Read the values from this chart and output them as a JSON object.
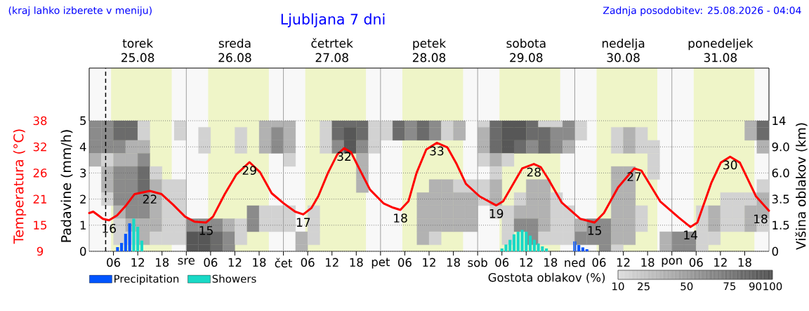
{
  "chart_data": [
    {
      "type": "bar",
      "title": "Ljubljana 7 dni",
      "annotations": [
        "(kraj lahko izberete v meniju)",
        "Zadnja posodobitev: 25.08.2026 - 04:04"
      ],
      "ylabel": "Padavine (mm/h)",
      "y2label": "Temperatura (°C)",
      "xlim": [
        "2026-08-25T00:00",
        "2026-09-01T00:00"
      ],
      "xticks": [
        {
          "value": "2026-08-25T06:00",
          "label": "06"
        },
        {
          "value": "2026-08-25T12:00",
          "label": "12"
        },
        {
          "value": "2026-08-25T18:00",
          "label": "18"
        },
        {
          "value": "2026-08-26T00:00",
          "label": "sre"
        },
        {
          "value": "2026-08-26T06:00",
          "label": "06"
        },
        {
          "value": "2026-08-26T12:00",
          "label": "12"
        },
        {
          "value": "2026-08-26T18:00",
          "label": "18"
        },
        {
          "value": "2026-08-27T00:00",
          "label": "čet"
        },
        {
          "value": "2026-08-27T06:00",
          "label": "06"
        },
        {
          "value": "2026-08-27T12:00",
          "label": "12"
        },
        {
          "value": "2026-08-27T18:00",
          "label": "18"
        },
        {
          "value": "2026-08-28T00:00",
          "label": "pet"
        },
        {
          "value": "2026-08-28T06:00",
          "label": "06"
        },
        {
          "value": "2026-08-28T12:00",
          "label": "12"
        },
        {
          "value": "2026-08-28T18:00",
          "label": "18"
        },
        {
          "value": "2026-08-29T00:00",
          "label": "sob"
        },
        {
          "value": "2026-08-29T06:00",
          "label": "06"
        },
        {
          "value": "2026-08-29T12:00",
          "label": "12"
        },
        {
          "value": "2026-08-29T18:00",
          "label": "18"
        },
        {
          "value": "2026-08-30T00:00",
          "label": "ned"
        },
        {
          "value": "2026-08-30T06:00",
          "label": "06"
        },
        {
          "value": "2026-08-30T12:00",
          "label": "12"
        },
        {
          "value": "2026-08-30T18:00",
          "label": "18"
        },
        {
          "value": "2026-08-31T00:00",
          "label": "pon"
        },
        {
          "value": "2026-08-31T06:00",
          "label": "06"
        },
        {
          "value": "2026-08-31T12:00",
          "label": "12"
        },
        {
          "value": "2026-08-31T18:00",
          "label": "18"
        }
      ],
      "x2lim": [
        "2026-08-25T00:00",
        "2026-09-01T00:00"
      ],
      "x2ticks": [
        {
          "value": "2026-08-25T12:00",
          "label": "torek\n25.08"
        },
        {
          "value": "2026-08-26T12:00",
          "label": "sreda\n26.08"
        },
        {
          "value": "2026-08-27T12:00",
          "label": "četrtek\n27.08"
        },
        {
          "value": "2026-08-28T12:00",
          "label": "petek\n28.08"
        },
        {
          "value": "2026-08-29T12:00",
          "label": "sobota\n29.08"
        },
        {
          "value": "2026-08-30T12:00",
          "label": "nedelja\n30.08"
        },
        {
          "value": "2026-08-31T12:00",
          "label": "ponedeljek\n31.08"
        }
      ],
      "ylim": [
        0,
        5
      ],
      "yticks": [
        0,
        1,
        2,
        3,
        4,
        5
      ],
      "y2lim": [
        9,
        38
      ],
      "y2ticks": [
        9,
        {
          "value": 14.8,
          "label": "15"
        },
        {
          "value": 20.6,
          "label": "21"
        },
        {
          "value": 26.4,
          "label": "26"
        },
        {
          "value": 32.2,
          "label": "32"
        },
        38
      ],
      "grid": "y",
      "legend": "bottom left",
      "bands": [
        {
          "axis": "x",
          "from": "2026-08-25T05:24",
          "to": "2026-08-25T20:24",
          "color": "#eff5c8"
        },
        {
          "axis": "x",
          "from": "2026-08-26T05:24",
          "to": "2026-08-26T20:24",
          "color": "#eff5c8"
        },
        {
          "axis": "x",
          "from": "2026-08-27T05:24",
          "to": "2026-08-27T20:24",
          "color": "#eff5c8"
        },
        {
          "axis": "x",
          "from": "2026-08-28T05:24",
          "to": "2026-08-28T20:24",
          "color": "#eff5c8"
        },
        {
          "axis": "x",
          "from": "2026-08-29T05:24",
          "to": "2026-08-29T20:24",
          "color": "#eff5c8"
        },
        {
          "axis": "x",
          "from": "2026-08-30T05:24",
          "to": "2026-08-30T20:24",
          "color": "#eff5c8"
        },
        {
          "axis": "x",
          "from": "2026-08-31T05:24",
          "to": "2026-08-31T20:24",
          "color": "#eff5c8"
        }
      ],
      "ref_lines": [
        {
          "axis": "x",
          "value": "2026-08-25T04:04",
          "line_style": "dashed",
          "color": "#000000"
        },
        {
          "axis": "x",
          "value": "2026-08-26T00:00",
          "color": "#a0a0a0"
        },
        {
          "axis": "x",
          "value": "2026-08-27T00:00",
          "color": "#a0a0a0"
        },
        {
          "axis": "x",
          "value": "2026-08-28T00:00",
          "color": "#a0a0a0"
        },
        {
          "axis": "x",
          "value": "2026-08-29T00:00",
          "color": "#a0a0a0"
        },
        {
          "axis": "x",
          "value": "2026-08-30T00:00",
          "color": "#a0a0a0"
        },
        {
          "axis": "x",
          "value": "2026-08-31T00:00",
          "color": "#a0a0a0"
        }
      ],
      "series": [
        {
          "name": "Precipitation",
          "color": "#0055ff",
          "x": [
            "2026-08-25T07:00",
            "2026-08-25T08:00",
            "2026-08-25T09:00",
            "2026-08-25T10:00",
            "2026-08-30T00:00",
            "2026-08-30T01:00",
            "2026-08-30T02:00",
            "2026-08-30T03:00"
          ],
          "values": [
            0.16,
            0.32,
            0.67,
            1.07,
            0.38,
            0.24,
            0.15,
            0.08
          ]
        },
        {
          "name": "Showers",
          "color": "#19d9c6",
          "x": [
            "2026-08-25T11:00",
            "2026-08-25T12:00",
            "2026-08-25T13:00",
            "2026-08-29T06:00",
            "2026-08-29T07:00",
            "2026-08-29T08:00",
            "2026-08-29T09:00",
            "2026-08-29T10:00",
            "2026-08-29T11:00",
            "2026-08-29T12:00",
            "2026-08-29T13:00",
            "2026-08-29T14:00",
            "2026-08-29T15:00",
            "2026-08-29T16:00",
            "2026-08-29T17:00"
          ],
          "values": [
            1.25,
            0.94,
            0.41,
            0.11,
            0.26,
            0.44,
            0.65,
            0.75,
            0.82,
            0.75,
            0.6,
            0.44,
            0.3,
            0.19,
            0.11
          ]
        },
        {
          "type": "line",
          "axis": "y2",
          "color": "#ff0000",
          "x": [
            "2026-08-25T00:00",
            "2026-08-25T01:00",
            "2026-08-25T03:24",
            "2026-08-25T04:54",
            "2026-08-25T06:54",
            "2026-08-25T09:12",
            "2026-08-25T11:12",
            "2026-08-25T15:00",
            "2026-08-25T17:54",
            "2026-08-25T20:48",
            "2026-08-25T23:42",
            "2026-08-26T02:00",
            "2026-08-26T04:54",
            "2026-08-26T06:36",
            "2026-08-26T09:30",
            "2026-08-26T12:24",
            "2026-08-26T15:36",
            "2026-08-26T18:12",
            "2026-08-26T21:06",
            "2026-08-27T00:00",
            "2026-08-27T02:54",
            "2026-08-27T04:54",
            "2026-08-27T06:54",
            "2026-08-27T08:36",
            "2026-08-27T11:00",
            "2026-08-27T13:18",
            "2026-08-27T15:00",
            "2026-08-27T16:42",
            "2026-08-27T19:00",
            "2026-08-27T21:24",
            "2026-08-28T00:48",
            "2026-08-28T03:06",
            "2026-08-28T04:54",
            "2026-08-28T06:54",
            "2026-08-28T08:54",
            "2026-08-28T11:18",
            "2026-08-28T13:54",
            "2026-08-28T16:30",
            "2026-08-28T18:48",
            "2026-08-28T21:06",
            "2026-08-29T00:30",
            "2026-08-29T04:36",
            "2026-08-29T06:18",
            "2026-08-29T11:00",
            "2026-08-29T13:54",
            "2026-08-29T15:36",
            "2026-08-29T17:18",
            "2026-08-29T20:48",
            "2026-08-30T01:24",
            "2026-08-30T04:54",
            "2026-08-30T07:12",
            "2026-08-30T10:42",
            "2026-08-30T14:42",
            "2026-08-30T16:30",
            "2026-08-30T21:06",
            "2026-08-31T01:42",
            "2026-08-31T04:36",
            "2026-08-31T06:18",
            "2026-08-31T09:48",
            "2026-08-31T12:06",
            "2026-08-31T14:24",
            "2026-08-31T16:48",
            "2026-08-31T20:48",
            "2026-09-01T00:00"
          ],
          "values": [
            17.5,
            17.8,
            16.2,
            15.9,
            17.0,
            19.3,
            21.7,
            22.4,
            21.7,
            19.3,
            16.7,
            15.6,
            15.4,
            16.7,
            21.7,
            26.1,
            28.8,
            26.6,
            21.9,
            19.7,
            17.8,
            17.2,
            18.6,
            21.2,
            26.4,
            30.5,
            31.9,
            31.0,
            26.9,
            22.7,
            19.6,
            18.7,
            18.2,
            20.1,
            26.4,
            31.6,
            33.1,
            32.1,
            28.4,
            24.0,
            21.2,
            19.2,
            20.1,
            27.4,
            28.4,
            27.7,
            25.3,
            19.8,
            16.2,
            15.4,
            17.5,
            23.2,
            27.4,
            26.9,
            20.1,
            16.5,
            14.4,
            15.4,
            24.3,
            28.7,
            30.0,
            28.7,
            21.2,
            18.0
          ],
          "value_labels": [
            null,
            null,
            null,
            "16",
            null,
            null,
            null,
            "22",
            null,
            null,
            null,
            null,
            "15",
            null,
            null,
            null,
            "29",
            null,
            null,
            null,
            null,
            "17",
            null,
            null,
            null,
            null,
            "32",
            null,
            null,
            null,
            null,
            null,
            "18",
            null,
            null,
            null,
            "33",
            null,
            null,
            null,
            null,
            "19",
            null,
            null,
            "28",
            null,
            null,
            null,
            null,
            "15",
            null,
            null,
            "27",
            null,
            null,
            null,
            "14",
            null,
            null,
            null,
            "30",
            null,
            null,
            "18"
          ]
        }
      ]
    },
    {
      "type": "heatmap",
      "ylabel": "Višina oblakov (km)",
      "clabel": "Gostota oblakov (%)",
      "clim": [
        10,
        100
      ],
      "cticks": [
        10,
        25,
        50,
        75,
        90,
        100
      ],
      "tick_labels": "y",
      "categories": [
        null,
        null,
        null,
        null,
        null,
        null,
        null,
        null,
        null,
        null,
        null,
        null,
        null,
        null,
        null,
        null,
        null,
        null,
        null,
        null,
        null,
        null,
        null,
        null,
        null,
        null,
        null,
        null,
        null,
        null,
        null,
        null,
        null,
        null,
        null,
        null,
        null,
        null,
        null,
        null,
        null,
        null,
        null,
        null,
        null,
        null,
        null,
        null,
        null,
        null,
        null,
        null,
        null,
        null,
        null,
        null
      ],
      "y_categories": [
        "14",
        null,
        "9.0",
        null,
        "6.0",
        null,
        "3.5",
        null,
        "1.5",
        null,
        "0"
      ],
      "cells": [
        [
          62.5,
          62.5,
          82.5,
          82.5,
          17.5,
          null,
          null,
          17.5,
          null,
          null,
          null,
          null,
          null,
          null,
          37.5,
          37.5,
          37.5,
          null,
          null,
          17.5,
          82.5,
          82.5,
          82.5,
          17.5,
          17.5,
          82.5,
          62.5,
          82.5,
          62.5,
          17.5,
          37.5,
          null,
          17.5,
          82.5,
          95,
          95,
          82.5,
          17.5,
          17.5,
          62.5,
          17.5,
          null,
          null,
          null,
          null,
          null,
          null,
          null,
          null,
          null,
          null,
          null,
          null,
          null,
          37.5,
          82.5
        ],
        [
          62.5,
          62.5,
          82.5,
          82.5,
          17.5,
          null,
          null,
          17.5,
          null,
          17.5,
          null,
          null,
          17.5,
          null,
          37.5,
          62.5,
          37.5,
          null,
          null,
          17.5,
          82.5,
          95,
          82.5,
          17.5,
          17.5,
          82.5,
          62.5,
          82.5,
          62.5,
          17.5,
          37.5,
          null,
          37.5,
          82.5,
          95,
          95,
          82.5,
          82.5,
          62.5,
          62.5,
          17.5,
          null,
          null,
          17.5,
          37.5,
          17.5,
          null,
          null,
          null,
          null,
          null,
          null,
          null,
          null,
          37.5,
          82.5
        ],
        [
          62.5,
          62.5,
          62.5,
          37.5,
          37.5,
          null,
          null,
          null,
          null,
          17.5,
          null,
          null,
          17.5,
          null,
          37.5,
          62.5,
          37.5,
          null,
          null,
          17.5,
          62.5,
          95,
          62.5,
          17.5,
          null,
          null,
          null,
          null,
          null,
          null,
          null,
          null,
          37.5,
          82.5,
          95,
          82.5,
          62.5,
          82.5,
          62.5,
          37.5,
          null,
          null,
          null,
          17.5,
          37.5,
          17.5,
          17.5,
          null,
          null,
          null,
          null,
          null,
          null,
          null,
          null,
          37.5
        ],
        [
          37.5,
          17.5,
          37.5,
          37.5,
          62.5,
          null,
          null,
          null,
          null,
          null,
          null,
          null,
          null,
          null,
          null,
          null,
          17.5,
          null,
          null,
          null,
          null,
          null,
          37.5,
          null,
          null,
          null,
          null,
          null,
          null,
          null,
          null,
          null,
          17.5,
          37.5,
          17.5,
          null,
          null,
          null,
          null,
          null,
          null,
          null,
          null,
          null,
          null,
          null,
          17.5,
          null,
          null,
          null,
          null,
          null,
          null,
          null,
          null,
          null
        ],
        [
          null,
          37.5,
          62.5,
          62.5,
          82.5,
          17.5,
          null,
          null,
          null,
          null,
          null,
          null,
          null,
          null,
          null,
          null,
          null,
          null,
          null,
          null,
          null,
          null,
          37.5,
          null,
          null,
          null,
          null,
          null,
          null,
          null,
          null,
          null,
          null,
          17.5,
          null,
          null,
          null,
          null,
          null,
          null,
          null,
          null,
          null,
          37.5,
          37.5,
          null,
          17.5,
          null,
          null,
          null,
          null,
          null,
          null,
          null,
          null,
          null
        ],
        [
          null,
          37.5,
          62.5,
          62.5,
          82.5,
          37.5,
          17.5,
          17.5,
          null,
          null,
          null,
          null,
          null,
          null,
          null,
          null,
          null,
          null,
          null,
          null,
          null,
          null,
          37.5,
          null,
          null,
          null,
          null,
          null,
          37.5,
          37.5,
          17.5,
          17.5,
          17.5,
          37.5,
          null,
          null,
          37.5,
          37.5,
          null,
          null,
          null,
          null,
          null,
          37.5,
          37.5,
          null,
          null,
          null,
          null,
          null,
          null,
          null,
          null,
          null,
          null,
          17.5
        ],
        [
          null,
          17.5,
          62.5,
          62.5,
          62.5,
          37.5,
          17.5,
          17.5,
          null,
          null,
          null,
          null,
          null,
          null,
          null,
          null,
          null,
          null,
          null,
          null,
          null,
          null,
          null,
          null,
          null,
          null,
          null,
          37.5,
          37.5,
          37.5,
          37.5,
          37.5,
          17.5,
          37.5,
          null,
          17.5,
          37.5,
          37.5,
          17.5,
          null,
          null,
          null,
          null,
          37.5,
          37.5,
          null,
          null,
          null,
          null,
          null,
          null,
          null,
          17.5,
          17.5,
          17.5,
          37.5
        ],
        [
          null,
          null,
          37.5,
          62.5,
          62.5,
          37.5,
          17.5,
          17.5,
          null,
          null,
          null,
          null,
          null,
          62.5,
          17.5,
          17.5,
          17.5,
          null,
          17.5,
          null,
          null,
          null,
          null,
          null,
          null,
          null,
          null,
          37.5,
          37.5,
          37.5,
          37.5,
          37.5,
          null,
          17.5,
          17.5,
          37.5,
          37.5,
          37.5,
          17.5,
          17.5,
          null,
          null,
          null,
          37.5,
          37.5,
          17.5,
          null,
          null,
          null,
          null,
          17.5,
          37.5,
          17.5,
          17.5,
          37.5,
          37.5
        ],
        [
          null,
          null,
          17.5,
          37.5,
          37.5,
          37.5,
          17.5,
          17.5,
          62.5,
          62.5,
          62.5,
          37.5,
          17.5,
          62.5,
          17.5,
          17.5,
          17.5,
          null,
          17.5,
          null,
          null,
          null,
          null,
          null,
          null,
          null,
          null,
          37.5,
          37.5,
          37.5,
          37.5,
          37.5,
          null,
          null,
          17.5,
          62.5,
          62.5,
          37.5,
          17.5,
          17.5,
          37.5,
          62.5,
          62.5,
          37.5,
          37.5,
          17.5,
          null,
          null,
          null,
          null,
          17.5,
          37.5,
          17.5,
          17.5,
          37.5,
          17.5
        ],
        [
          null,
          null,
          17.5,
          17.5,
          37.5,
          17.5,
          17.5,
          17.5,
          95,
          95,
          82.5,
          62.5,
          17.5,
          null,
          null,
          null,
          null,
          37.5,
          17.5,
          null,
          null,
          null,
          null,
          null,
          null,
          null,
          null,
          37.5,
          17.5,
          null,
          null,
          null,
          null,
          null,
          17.5,
          null,
          62.5,
          17.5,
          17.5,
          17.5,
          62.5,
          62.5,
          62.5,
          37.5,
          37.5,
          null,
          null,
          37.5,
          62.5,
          62.5,
          17.5,
          17.5,
          null,
          null,
          null,
          null
        ],
        [
          null,
          null,
          null,
          null,
          null,
          null,
          null,
          null,
          95,
          95,
          82.5,
          62.5,
          null,
          null,
          null,
          null,
          null,
          37.5,
          null,
          null,
          null,
          null,
          null,
          null,
          null,
          null,
          null,
          null,
          null,
          null,
          null,
          null,
          null,
          null,
          null,
          null,
          null,
          null,
          null,
          null,
          null,
          null,
          62.5,
          17.5,
          null,
          null,
          null,
          37.5,
          62.5,
          62.5,
          17.5,
          null,
          null,
          null,
          null,
          null
        ]
      ]
    }
  ]
}
